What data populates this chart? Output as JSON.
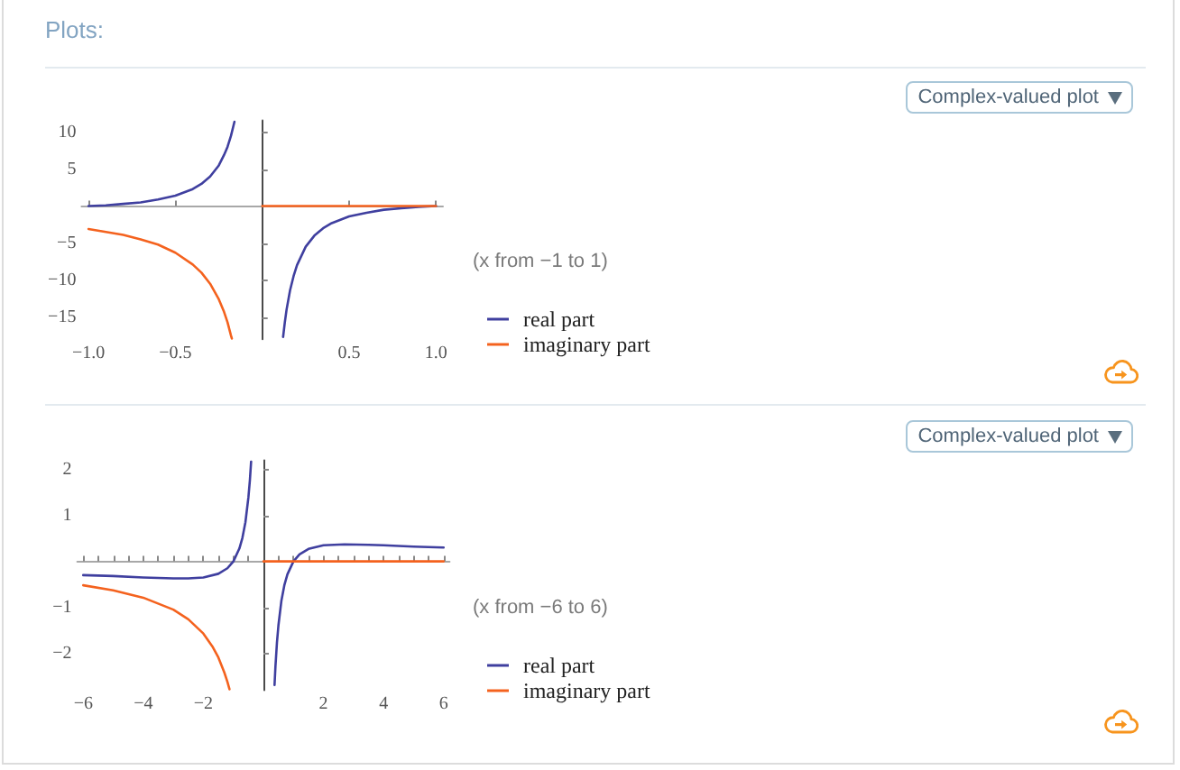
{
  "chart_data": [
    {
      "type": "line",
      "title": "Plots:",
      "annotations": [
        "Complex-valued plot",
        "(x from −1 to 1)"
      ],
      "series": [
        {
          "name": "real part",
          "color": "#3f3f9f",
          "x": [
            -1,
            -0.9,
            -0.8,
            -0.7,
            -0.6,
            -0.5,
            -0.4,
            -0.35,
            -0.3,
            -0.25,
            -0.22,
            -0.2,
            -0.18,
            -0.16,
            0,
            0.12,
            0.13,
            0.14,
            0.16,
            0.18,
            0.2,
            0.25,
            0.3,
            0.35,
            0.4,
            0.5,
            0.6,
            0.7,
            0.8,
            0.9,
            1
          ],
          "values": [
            0,
            0.1,
            0.3,
            0.5,
            0.9,
            1.4,
            2.3,
            3.0,
            4.0,
            5.5,
            6.9,
            8.0,
            9.5,
            11.4,
            null,
            -17.7,
            -15.7,
            -14.0,
            -11.4,
            -9.5,
            -8.0,
            -5.5,
            -4.0,
            -3.0,
            -2.3,
            -1.4,
            -0.9,
            -0.5,
            -0.3,
            -0.1,
            0
          ]
        },
        {
          "name": "imaginary part",
          "color": "#f4621e",
          "x": [
            -1,
            -0.9,
            -0.8,
            -0.7,
            -0.6,
            -0.5,
            -0.4,
            -0.35,
            -0.3,
            -0.25,
            -0.22,
            -0.2,
            -0.18,
            -0.175,
            -0.1,
            0,
            1
          ],
          "values": [
            -3.1,
            -3.5,
            -3.9,
            -4.5,
            -5.2,
            -6.3,
            -7.9,
            -9.0,
            -10.5,
            -12.6,
            -14.3,
            -15.7,
            -17.5,
            -17.9,
            null,
            0,
            0
          ]
        }
      ],
      "xlim": [
        -1.04,
        1.04
      ],
      "ylim": [
        -18,
        11.6
      ],
      "xticks": [
        {
          "value": -1,
          "label": "−1.0"
        },
        {
          "value": -0.5,
          "label": "−0.5"
        },
        {
          "value": 0.5,
          "label": "0.5"
        },
        {
          "value": 1,
          "label": "1.0"
        }
      ],
      "yticks": [
        {
          "value": -15,
          "label": "−15"
        },
        {
          "value": -10,
          "label": "−10"
        },
        {
          "value": -5,
          "label": "−5"
        },
        5,
        10
      ],
      "legend": "right"
    },
    {
      "type": "line",
      "annotations": [
        "Complex-valued plot",
        "(x from −6 to 6)"
      ],
      "series": [
        {
          "name": "real part",
          "color": "#3f3f9f",
          "x": [
            -6,
            -5,
            -4,
            -3,
            -2.5,
            -2,
            -1.5,
            -1.2,
            -1,
            -0.8,
            -0.7,
            -0.6,
            -0.5,
            -0.45,
            -0.41,
            0,
            0.37,
            0.4,
            0.45,
            0.5,
            0.6,
            0.7,
            0.8,
            1,
            1.2,
            1.5,
            2,
            2.7,
            3.5,
            4,
            5,
            6
          ],
          "values": [
            -0.3,
            -0.32,
            -0.35,
            -0.37,
            -0.37,
            -0.35,
            -0.27,
            -0.15,
            0,
            0.28,
            0.51,
            0.85,
            1.39,
            1.77,
            2.17,
            null,
            -2.69,
            -2.29,
            -1.77,
            -1.39,
            -0.85,
            -0.51,
            -0.28,
            0,
            0.15,
            0.27,
            0.35,
            0.37,
            0.36,
            0.35,
            0.32,
            0.3
          ]
        },
        {
          "name": "imaginary part",
          "color": "#f4621e",
          "x": [
            -6,
            -5,
            -4,
            -3,
            -2.5,
            -2,
            -1.7,
            -1.5,
            -1.3,
            -1.2,
            -1.13,
            -0.5,
            0,
            6
          ],
          "values": [
            -0.52,
            -0.63,
            -0.79,
            -1.05,
            -1.26,
            -1.57,
            -1.85,
            -2.09,
            -2.42,
            -2.62,
            -2.78,
            null,
            0,
            0
          ]
        }
      ],
      "xlim": [
        -6.2,
        6.2
      ],
      "ylim": [
        -2.8,
        2.2
      ],
      "xticks": [
        {
          "value": -6,
          "label": "−6"
        },
        {
          "value": -5.5,
          "label": null
        },
        {
          "value": -5,
          "label": null
        },
        {
          "value": -4.5,
          "label": null
        },
        {
          "value": -4,
          "label": "−4"
        },
        {
          "value": -3.5,
          "label": null
        },
        {
          "value": -3,
          "label": null
        },
        {
          "value": -2.5,
          "label": null
        },
        {
          "value": -2,
          "label": "−2"
        },
        {
          "value": -1.5,
          "label": null
        },
        {
          "value": -1,
          "label": null
        },
        {
          "value": -0.5,
          "label": null
        },
        {
          "value": 0.5,
          "label": null
        },
        {
          "value": 1,
          "label": null
        },
        {
          "value": 1.5,
          "label": null
        },
        2,
        {
          "value": 2.5,
          "label": null
        },
        {
          "value": 3,
          "label": null
        },
        {
          "value": 3.5,
          "label": null
        },
        4,
        {
          "value": 4.5,
          "label": null
        },
        {
          "value": 5,
          "label": null
        },
        {
          "value": 5.5,
          "label": null
        },
        6
      ],
      "yticks": [
        {
          "value": -2,
          "label": "−2"
        },
        {
          "value": -1,
          "label": "−1"
        },
        1,
        2
      ],
      "legend": "right"
    }
  ]
}
